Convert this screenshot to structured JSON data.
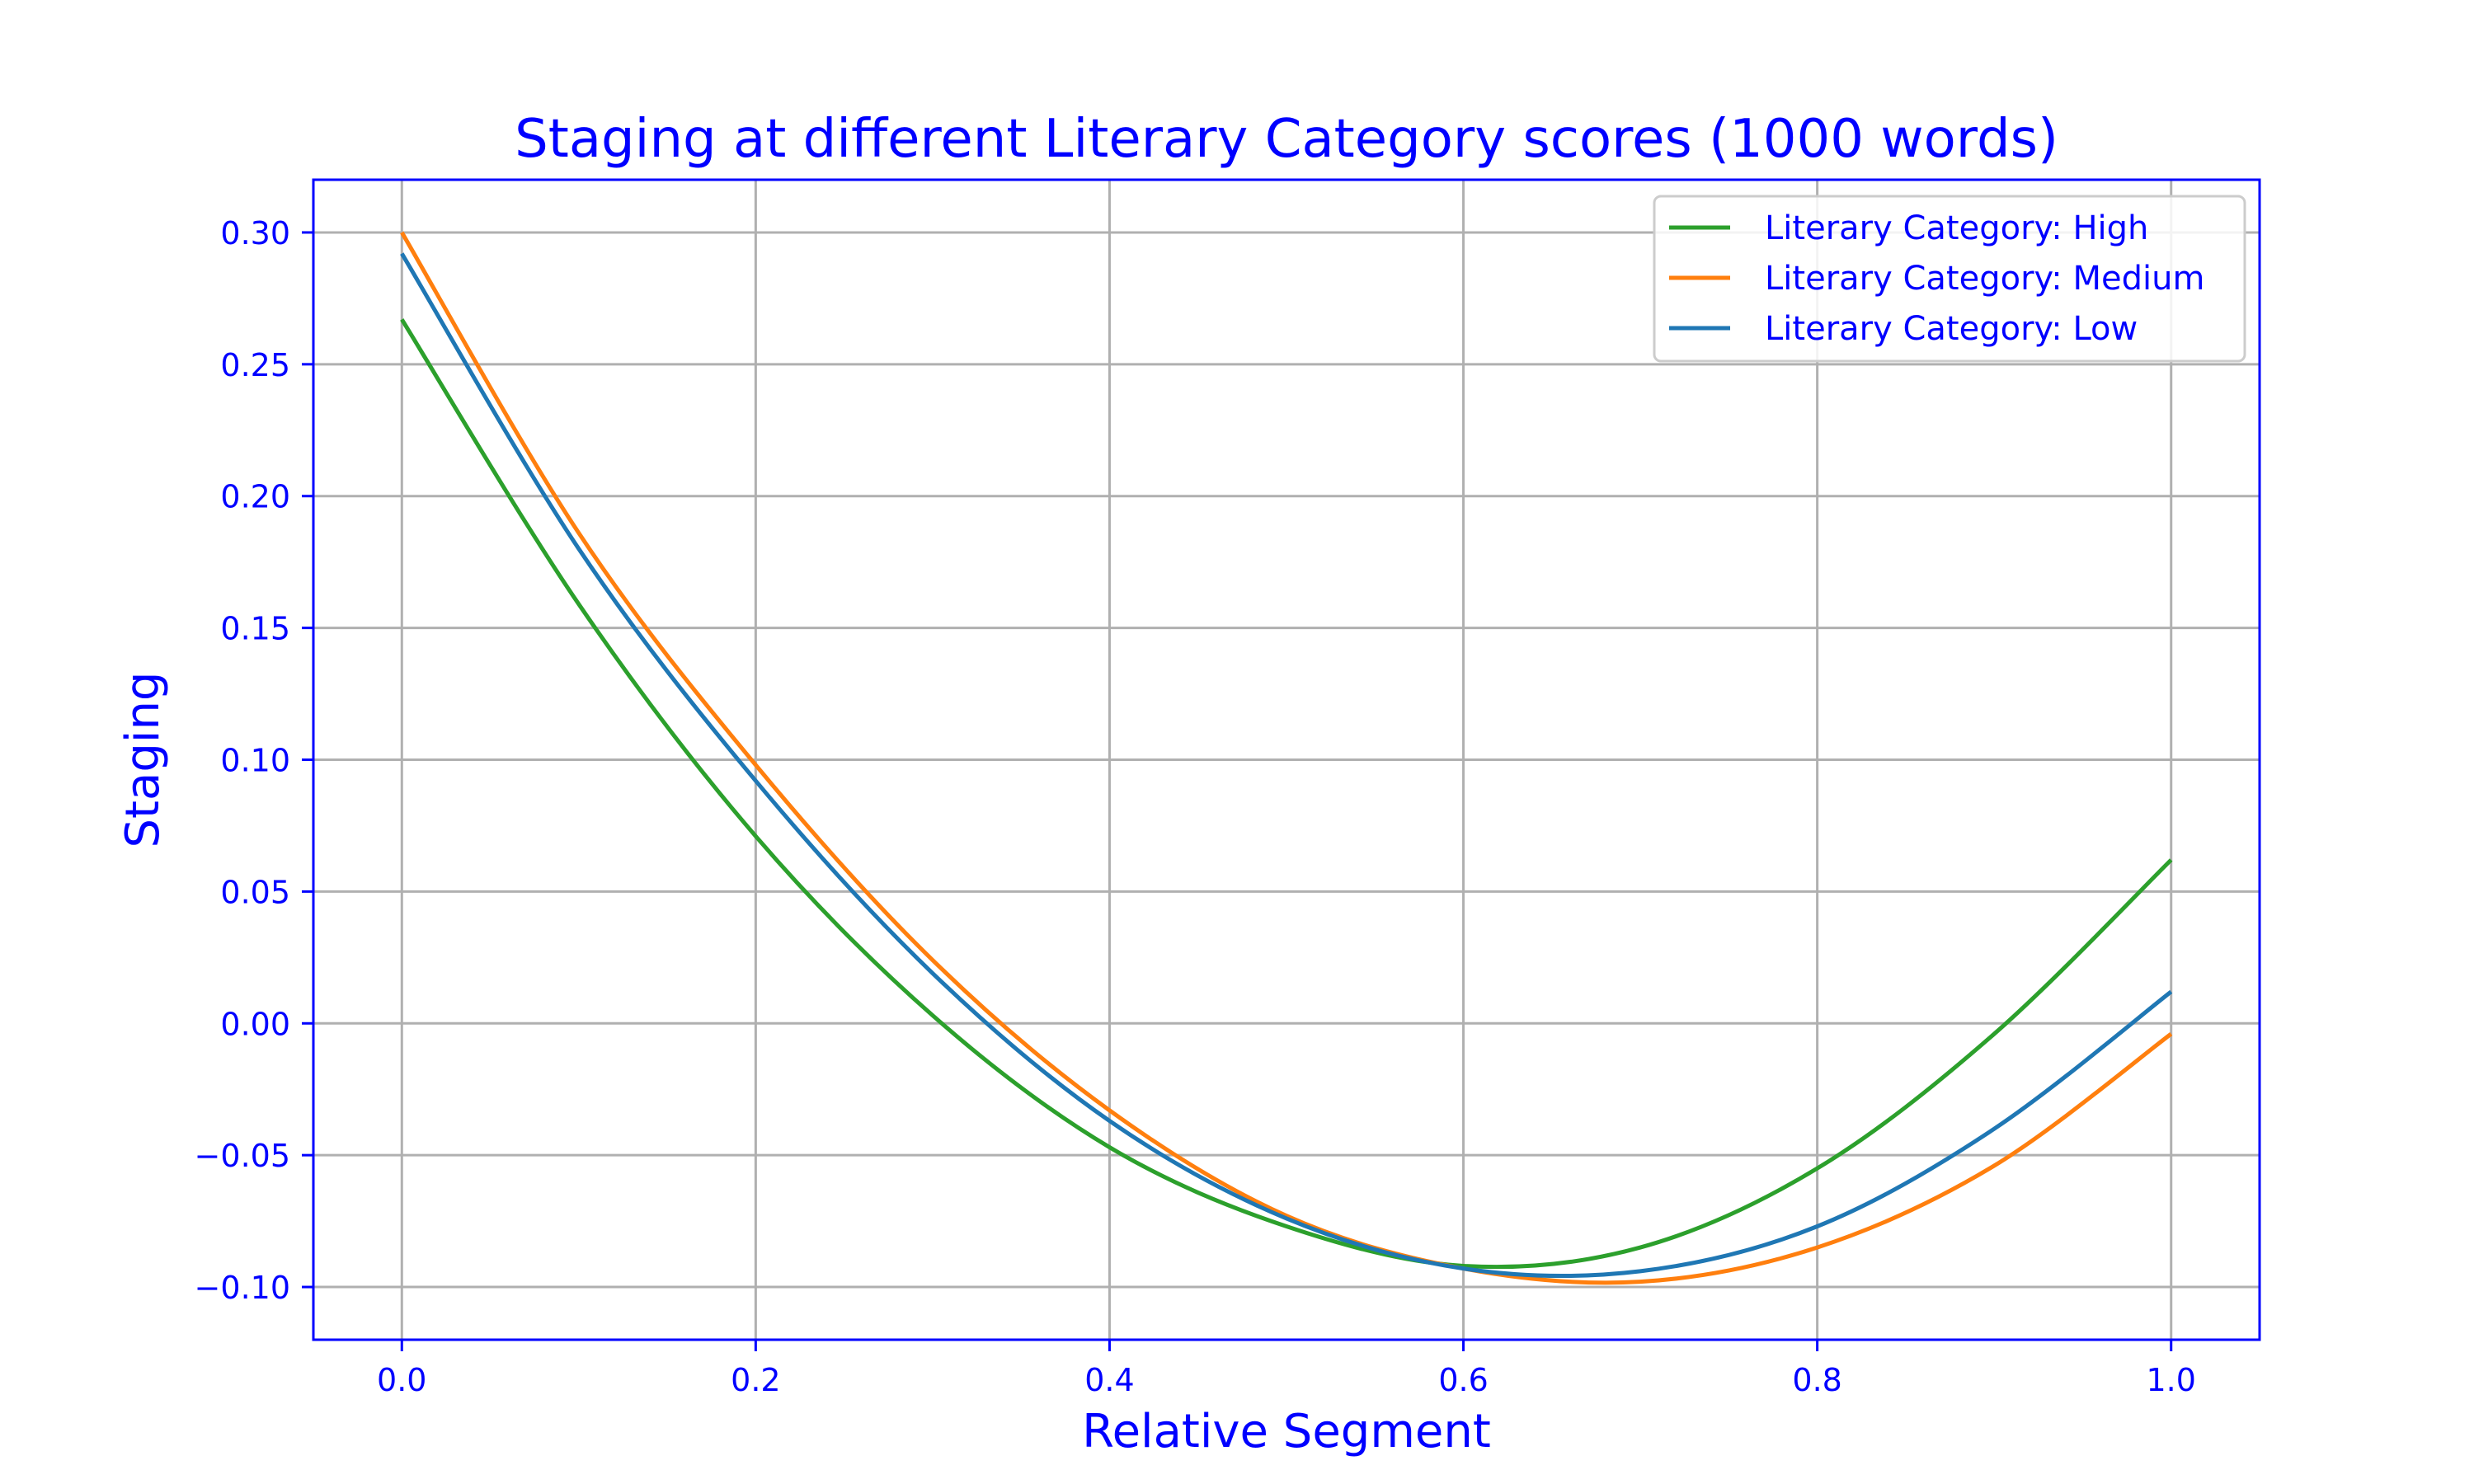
{
  "chart_data": {
    "type": "line",
    "title": "Staging at different Literary Category scores (1000 words)",
    "xlabel": "Relative Segment",
    "ylabel": "Staging",
    "xlim": [
      -0.05,
      1.05
    ],
    "ylim": [
      -0.12,
      0.32
    ],
    "x_ticks": [
      0.0,
      0.2,
      0.4,
      0.6,
      0.8,
      1.0
    ],
    "x_tick_labels": [
      "0.0",
      "0.2",
      "0.4",
      "0.6",
      "0.8",
      "1.0"
    ],
    "y_ticks": [
      0.3,
      0.25,
      0.2,
      0.15,
      0.1,
      0.05,
      0.0,
      -0.05,
      -0.1
    ],
    "y_tick_labels": [
      "0.30",
      "0.25",
      "0.20",
      "0.15",
      "0.10",
      "0.05",
      "0.00",
      "−0.05",
      "−0.10"
    ],
    "grid": true,
    "legend_position": "top-right",
    "text_color": "#0000ff",
    "frame_color": "#0000ff",
    "grid_color": "#b0b0b0",
    "series": [
      {
        "name": "Literary Category: High",
        "color": "#2ca02c",
        "x": [
          0.0,
          0.1,
          0.2,
          0.3,
          0.4,
          0.5,
          0.6,
          0.7,
          0.8,
          0.9,
          1.0
        ],
        "y": [
          0.267,
          0.159,
          0.071,
          0.003,
          -0.047,
          -0.077,
          -0.092,
          -0.085,
          -0.055,
          -0.004,
          0.062
        ]
      },
      {
        "name": "Literary Category: Medium",
        "color": "#ff7f0e",
        "x": [
          0.0,
          0.1,
          0.2,
          0.3,
          0.4,
          0.5,
          0.6,
          0.7,
          0.8,
          0.9,
          1.0
        ],
        "y": [
          0.3,
          0.186,
          0.098,
          0.024,
          -0.033,
          -0.073,
          -0.093,
          -0.098,
          -0.085,
          -0.054,
          -0.004
        ]
      },
      {
        "name": "Literary Category: Low",
        "color": "#1f77b4",
        "x": [
          0.0,
          0.1,
          0.2,
          0.3,
          0.4,
          0.5,
          0.6,
          0.7,
          0.8,
          0.9,
          1.0
        ],
        "y": [
          0.292,
          0.18,
          0.092,
          0.019,
          -0.037,
          -0.074,
          -0.093,
          -0.094,
          -0.077,
          -0.04,
          0.012
        ]
      }
    ]
  }
}
